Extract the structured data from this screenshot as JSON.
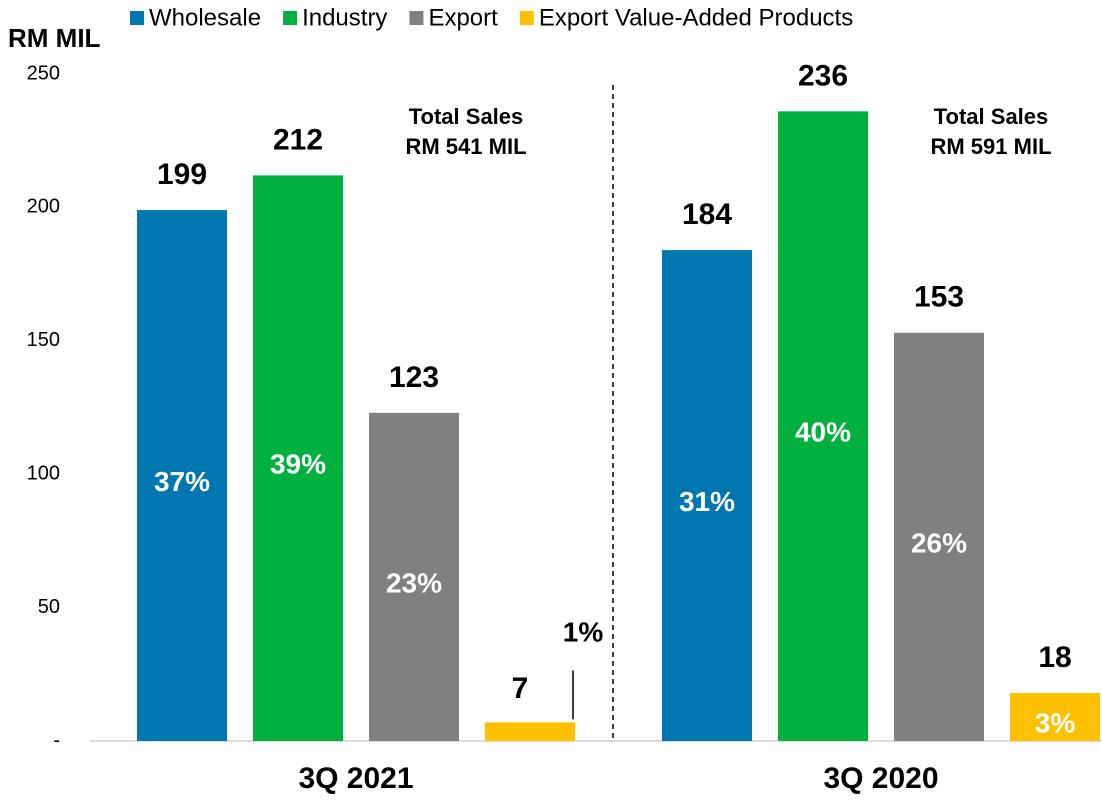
{
  "chart_data": {
    "type": "bar",
    "ylabel": "RM MIL",
    "categories": [
      "3Q 2021",
      "3Q 2020"
    ],
    "series": [
      {
        "name": "Wholesale",
        "color": "#0077b0",
        "values": [
          199,
          184
        ],
        "percent_labels": [
          "37%",
          "31%"
        ]
      },
      {
        "name": "Industry",
        "color": "#00b140",
        "values": [
          212,
          236
        ],
        "percent_labels": [
          "39%",
          "40%"
        ]
      },
      {
        "name": "Export",
        "color": "#808080",
        "values": [
          123,
          153
        ],
        "percent_labels": [
          "23%",
          "26%"
        ]
      },
      {
        "name": "Export Value-Added Products",
        "color": "#ffc000",
        "values": [
          7,
          18
        ],
        "percent_labels": [
          "1%",
          "3%"
        ]
      }
    ],
    "annotations": [
      [
        "Total Sales",
        "RM 541 MIL"
      ],
      [
        "Total Sales",
        "RM 591 MIL"
      ]
    ],
    "ylim": [
      0,
      250
    ],
    "yticks": [
      {
        "value": 0,
        "label": "-"
      },
      50,
      100,
      150,
      200,
      250
    ],
    "grid": false
  }
}
